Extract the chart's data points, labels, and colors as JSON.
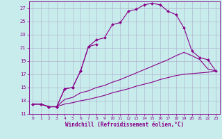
{
  "xlabel": "Windchill (Refroidissement éolien,°C)",
  "bg_color": "#c8ecec",
  "grid_color": "#b0b8d0",
  "line_color": "#880088",
  "xlim": [
    -0.5,
    23.5
  ],
  "ylim": [
    11,
    28
  ],
  "yticks": [
    11,
    13,
    15,
    17,
    19,
    21,
    23,
    25,
    27
  ],
  "xticks": [
    0,
    1,
    2,
    3,
    4,
    5,
    6,
    7,
    8,
    9,
    10,
    11,
    12,
    13,
    14,
    15,
    16,
    17,
    18,
    19,
    20,
    21,
    22,
    23
  ],
  "lines": [
    {
      "x": [
        0,
        1,
        2,
        3,
        4,
        5,
        6,
        7,
        8
      ],
      "y": [
        12.5,
        12.5,
        12.1,
        12.1,
        14.8,
        15.0,
        17.5,
        21.2,
        21.5
      ],
      "marker": true
    },
    {
      "x": [
        0,
        1,
        2,
        3,
        4,
        5,
        6,
        7,
        8,
        9,
        10,
        11,
        12,
        13,
        14,
        15,
        16,
        17,
        18,
        19,
        20,
        21,
        22,
        23
      ],
      "y": [
        12.5,
        12.5,
        12.1,
        12.1,
        14.8,
        15.0,
        17.5,
        21.2,
        22.2,
        22.5,
        24.5,
        24.8,
        26.5,
        26.8,
        27.5,
        27.7,
        27.5,
        26.5,
        26.0,
        24.0,
        20.5,
        19.5,
        19.2,
        17.5
      ],
      "marker": true
    },
    {
      "x": [
        0,
        1,
        2,
        3,
        4,
        5,
        6,
        7,
        8,
        9,
        10,
        11,
        12,
        13,
        14,
        15,
        16,
        17,
        18,
        19,
        20,
        21,
        22,
        23
      ],
      "y": [
        12.5,
        12.5,
        12.1,
        12.1,
        13.2,
        13.5,
        14.2,
        14.5,
        15.0,
        15.3,
        15.8,
        16.2,
        16.7,
        17.2,
        17.7,
        18.2,
        18.7,
        19.2,
        19.8,
        20.3,
        19.8,
        19.2,
        17.8,
        17.5
      ],
      "marker": false
    },
    {
      "x": [
        0,
        1,
        2,
        3,
        4,
        5,
        6,
        7,
        8,
        9,
        10,
        11,
        12,
        13,
        14,
        15,
        16,
        17,
        18,
        19,
        20,
        21,
        22,
        23
      ],
      "y": [
        12.5,
        12.5,
        12.1,
        12.1,
        12.5,
        12.7,
        13.0,
        13.2,
        13.5,
        13.8,
        14.2,
        14.5,
        14.8,
        15.2,
        15.5,
        15.8,
        16.2,
        16.5,
        16.8,
        17.0,
        17.1,
        17.2,
        17.3,
        17.5
      ],
      "marker": false
    }
  ]
}
